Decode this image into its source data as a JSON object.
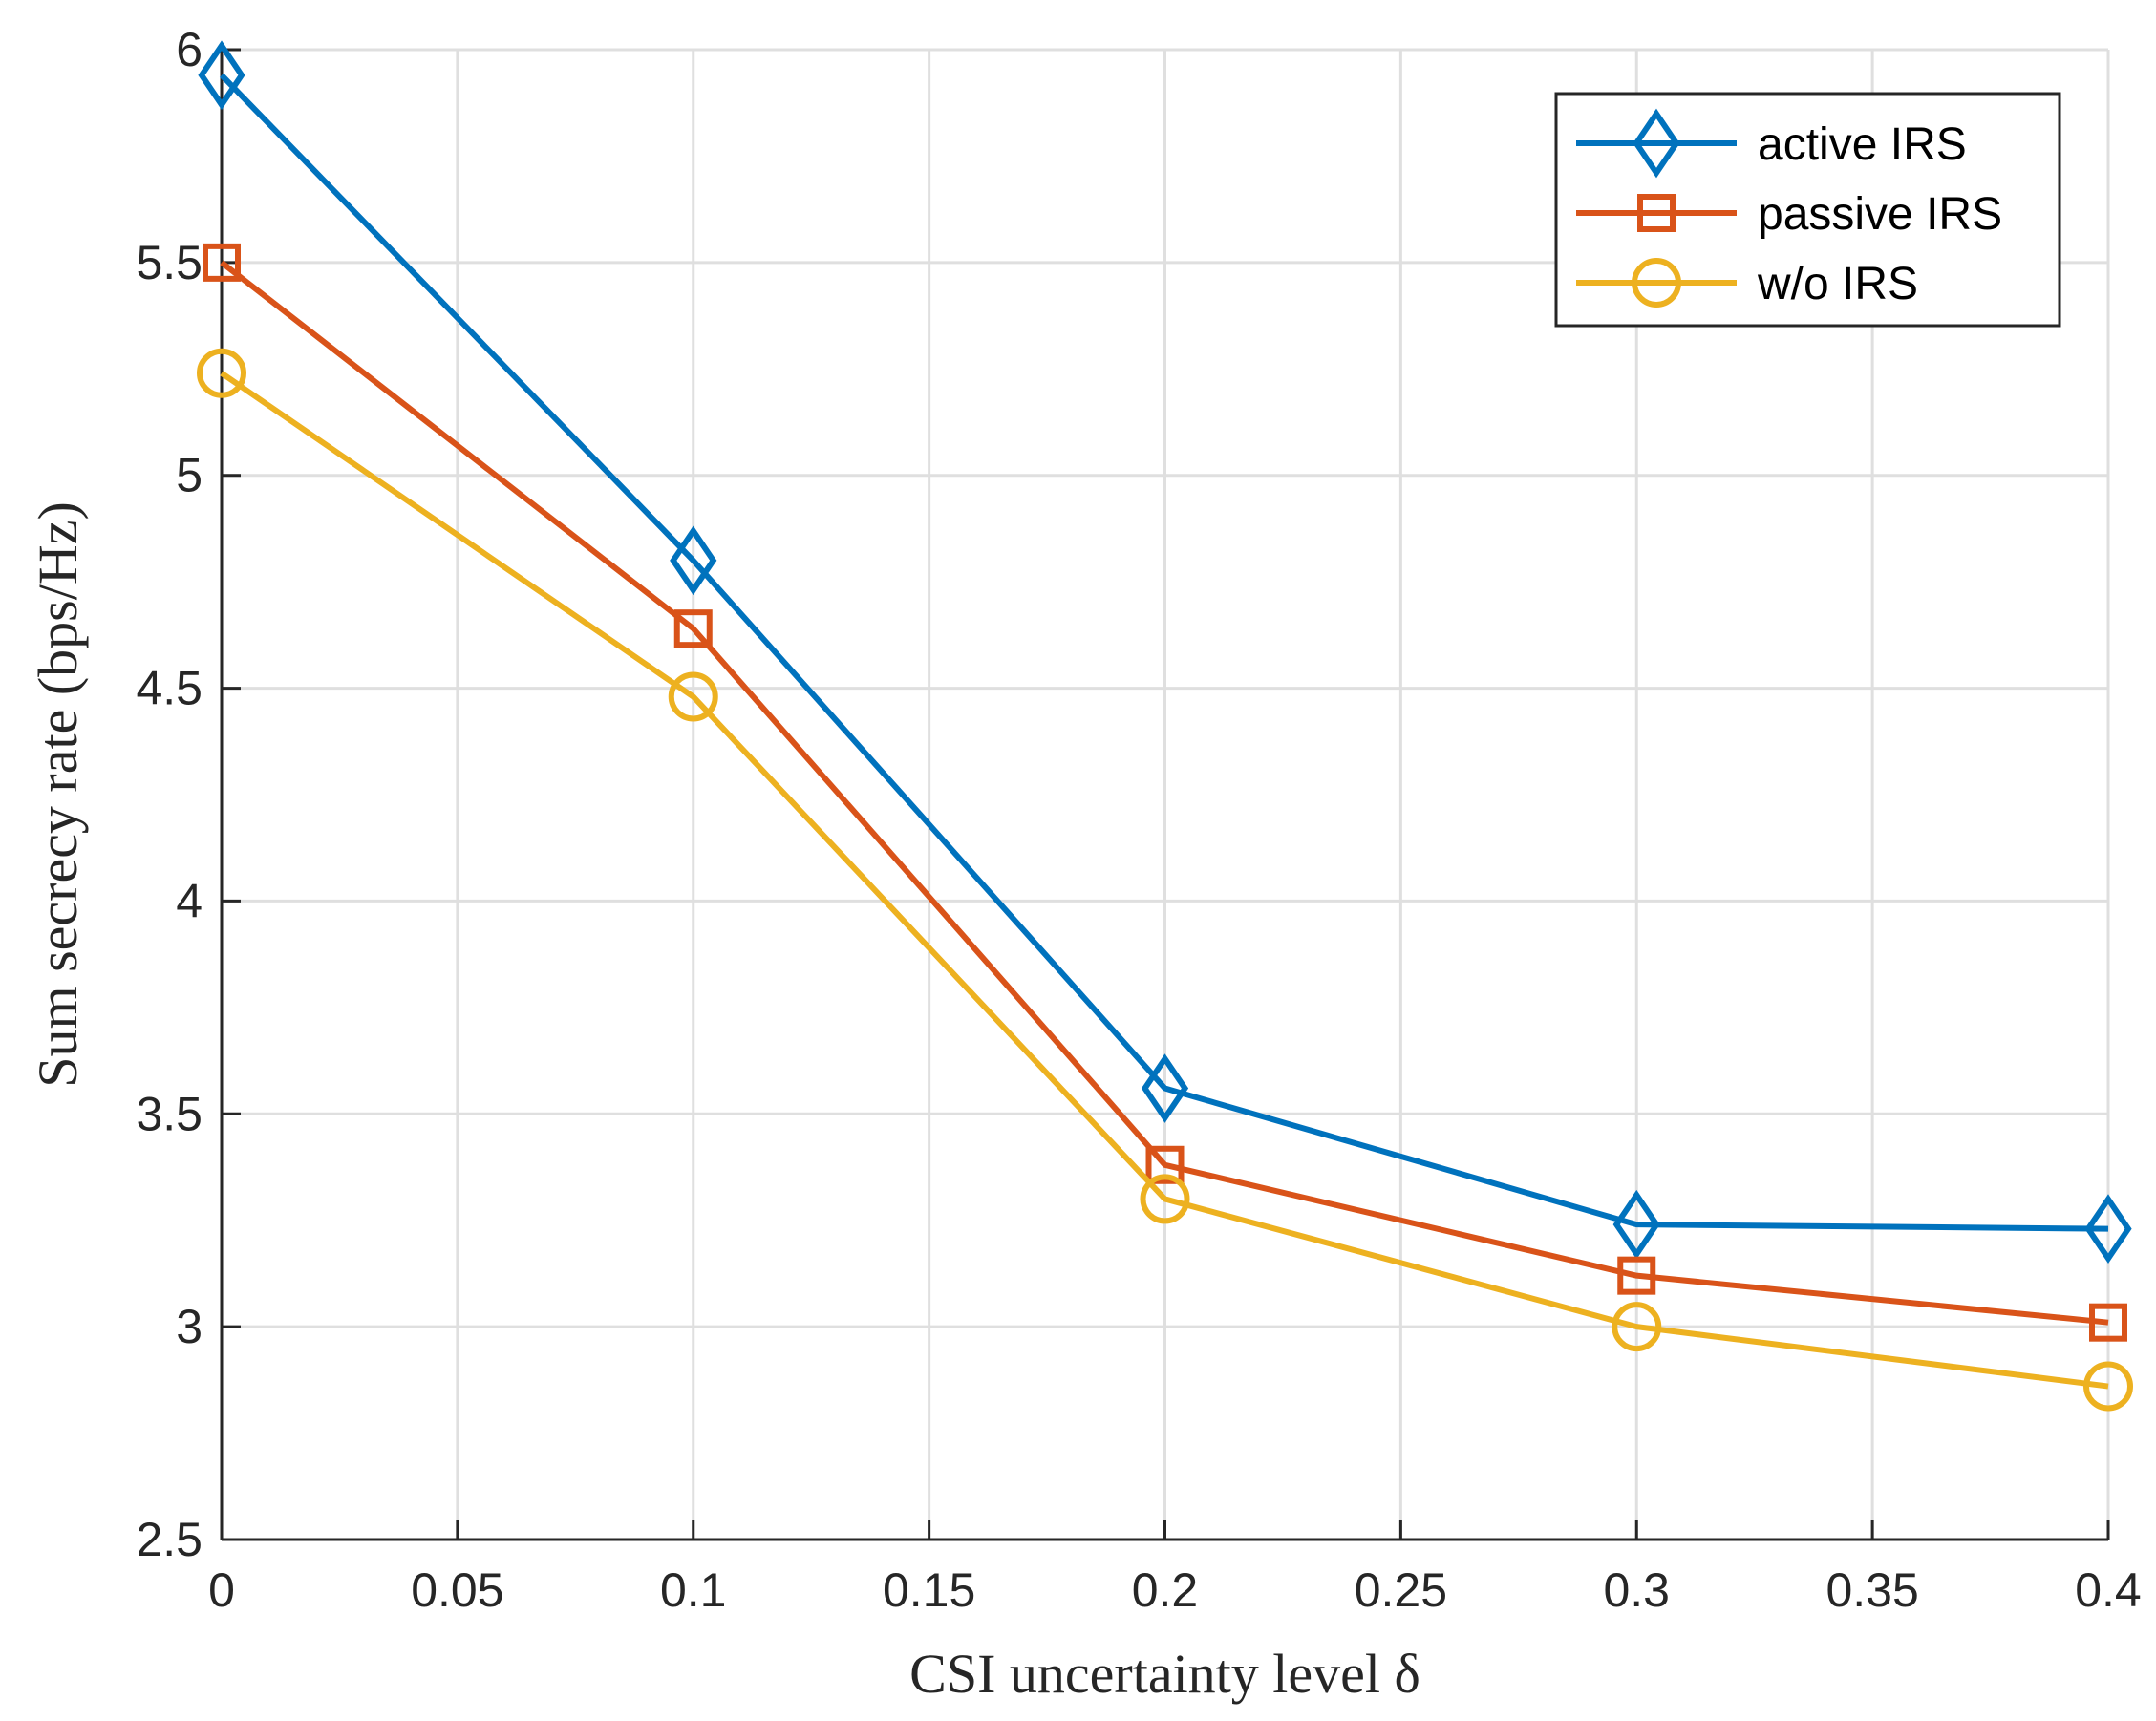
{
  "chart_data": {
    "type": "line",
    "title": "",
    "xlabel": "CSI uncertainty level δ",
    "ylabel": "Sum secrecy rate (bps/Hz)",
    "xlim": [
      0,
      0.4
    ],
    "ylim": [
      2.5,
      6
    ],
    "grid": true,
    "legend_position": "top-right",
    "x_ticks": [
      0,
      0.05,
      0.1,
      0.15,
      0.2,
      0.25,
      0.3,
      0.35,
      0.4
    ],
    "x_tick_labels": [
      "0",
      "0.05",
      "0.1",
      "0.15",
      "0.2",
      "0.25",
      "0.3",
      "0.35",
      "0.4"
    ],
    "y_ticks": [
      2.5,
      3,
      3.5,
      4,
      4.5,
      5,
      5.5,
      6
    ],
    "y_tick_labels": [
      "2.5",
      "3",
      "3.5",
      "4",
      "4.5",
      "5",
      "5.5",
      "6"
    ],
    "x": [
      0,
      0.1,
      0.2,
      0.3,
      0.4
    ],
    "series": [
      {
        "name": "active IRS",
        "marker": "diamond",
        "color": "#0072BD",
        "values": [
          5.94,
          4.8,
          3.56,
          3.24,
          3.23
        ]
      },
      {
        "name": "passive IRS",
        "marker": "square",
        "color": "#D95319",
        "values": [
          5.5,
          4.64,
          3.38,
          3.12,
          3.01
        ]
      },
      {
        "name": "w/o IRS",
        "marker": "circle",
        "color": "#EDB120",
        "values": [
          5.24,
          4.48,
          3.3,
          3.0,
          2.86
        ]
      }
    ]
  }
}
